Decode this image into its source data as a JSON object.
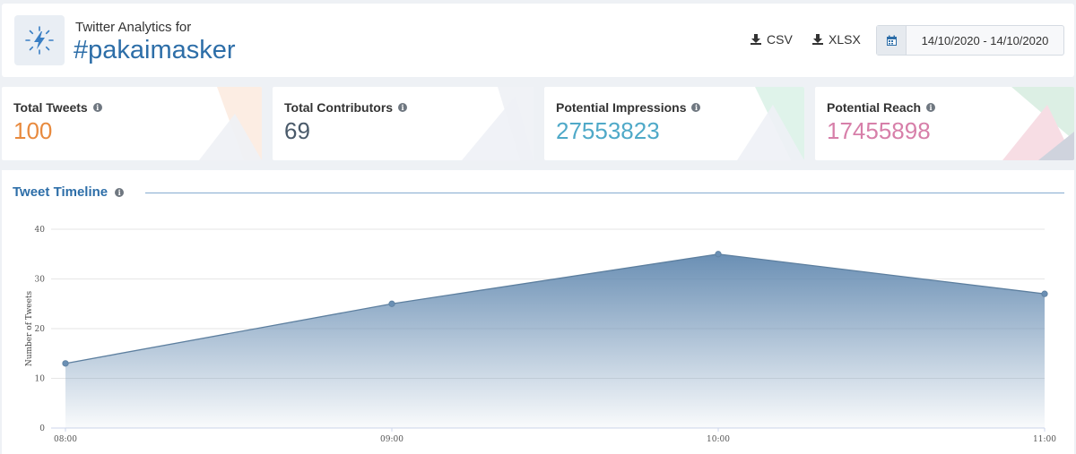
{
  "header": {
    "subtitle": "Twitter Analytics for",
    "hashtag": "#pakaimasker",
    "csv_label": "CSV",
    "xlsx_label": "XLSX",
    "date_range": "14/10/2020 - 14/10/2020"
  },
  "cards": [
    {
      "label": "Total Tweets",
      "value": "100",
      "color": "#e88a3e"
    },
    {
      "label": "Total Contributors",
      "value": "69",
      "color": "#4a5a6a"
    },
    {
      "label": "Potential Impressions",
      "value": "27553823",
      "color": "#4fa9c8"
    },
    {
      "label": "Potential Reach",
      "value": "17455898",
      "color": "#d77fa9"
    }
  ],
  "timeline": {
    "title": "Tweet Timeline"
  },
  "chart_data": {
    "type": "area",
    "x": [
      "08:00",
      "09:00",
      "10:00",
      "11:00"
    ],
    "series": [
      {
        "values": [
          13,
          25,
          35,
          27
        ]
      }
    ],
    "ylabel": "Number of Tweets",
    "yticks": [
      0,
      10,
      20,
      30,
      40
    ],
    "ylim": [
      0,
      40
    ],
    "grid": true,
    "color": "#6a8fb4"
  }
}
